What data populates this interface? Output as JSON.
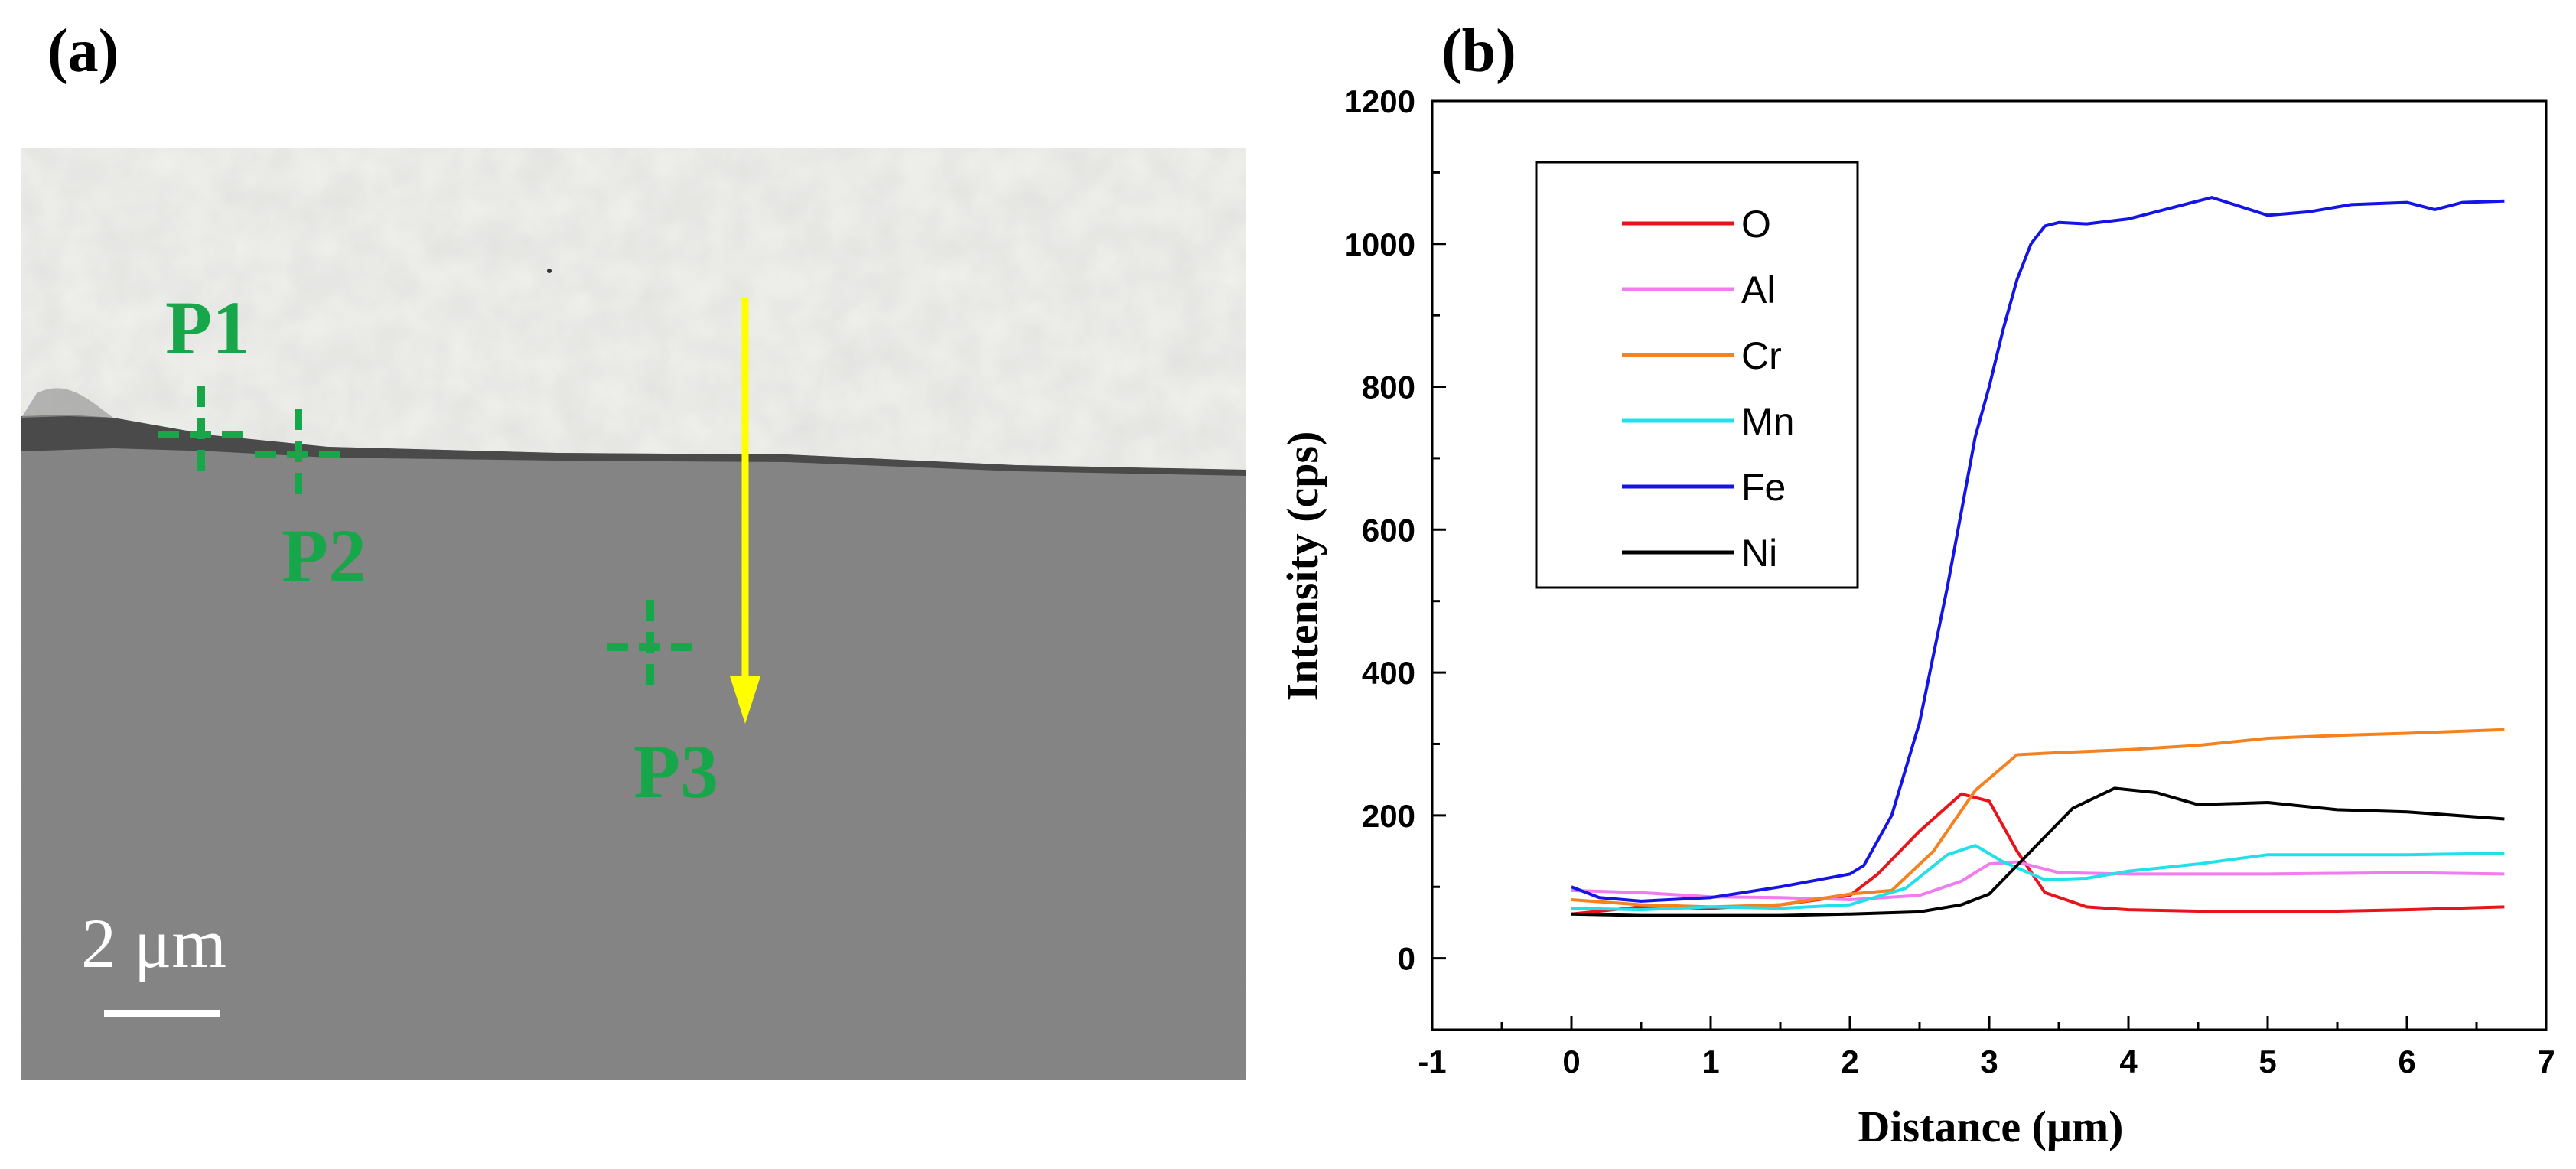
{
  "panels": {
    "a": "(a)",
    "b": "(b)"
  },
  "sem_image": {
    "points": [
      {
        "label": "P1"
      },
      {
        "label": "P2"
      },
      {
        "label": "P3"
      }
    ],
    "scale_bar": "2 μm",
    "marker_color": "#18a64a",
    "arrow_color": "#ffff00"
  },
  "chart_data": {
    "type": "line",
    "xlabel": "Distance (μm)",
    "ylabel": "Intensity  (cps)",
    "xlim": [
      -1,
      7
    ],
    "ylim": [
      -100,
      1200
    ],
    "xticks": [
      -1,
      0,
      1,
      2,
      3,
      4,
      5,
      6,
      7
    ],
    "yticks": [
      0,
      200,
      400,
      600,
      800,
      1000,
      1200
    ],
    "legend_position": "top-left",
    "series": [
      {
        "name": "O",
        "color": "#e8141c",
        "x": [
          0,
          0.5,
          1,
          1.5,
          2,
          2.2,
          2.5,
          2.8,
          3.0,
          3.2,
          3.4,
          3.7,
          4,
          4.5,
          5,
          5.5,
          6,
          6.7
        ],
        "y": [
          62,
          72,
          70,
          75,
          88,
          118,
          178,
          230,
          220,
          150,
          92,
          72,
          68,
          66,
          66,
          66,
          68,
          72
        ]
      },
      {
        "name": "Al",
        "color": "#f07cf0",
        "x": [
          0,
          0.5,
          1,
          1.5,
          2,
          2.5,
          2.8,
          3.0,
          3.2,
          3.5,
          4,
          5,
          6,
          6.7
        ],
        "y": [
          95,
          92,
          86,
          85,
          82,
          88,
          108,
          132,
          135,
          120,
          118,
          118,
          120,
          118
        ]
      },
      {
        "name": "Cr",
        "color": "#f5821f",
        "x": [
          0,
          0.5,
          1,
          1.5,
          2,
          2.3,
          2.6,
          2.9,
          3.2,
          3.5,
          4,
          4.5,
          5,
          5.5,
          6,
          6.7
        ],
        "y": [
          82,
          75,
          72,
          75,
          90,
          95,
          150,
          235,
          285,
          288,
          292,
          298,
          308,
          312,
          315,
          320
        ]
      },
      {
        "name": "Mn",
        "color": "#22e0ea",
        "x": [
          0,
          0.5,
          1,
          1.5,
          2,
          2.4,
          2.7,
          2.9,
          3.1,
          3.4,
          3.7,
          4,
          4.5,
          5,
          5.5,
          6,
          6.7
        ],
        "y": [
          70,
          68,
          72,
          70,
          75,
          98,
          145,
          158,
          135,
          110,
          112,
          122,
          132,
          145,
          145,
          145,
          147
        ]
      },
      {
        "name": "Fe",
        "color": "#1414e6",
        "x": [
          0,
          0.2,
          0.5,
          1,
          1.5,
          2,
          2.1,
          2.3,
          2.5,
          2.7,
          2.9,
          3.0,
          3.1,
          3.2,
          3.3,
          3.4,
          3.5,
          3.7,
          4,
          4.3,
          4.6,
          5,
          5.3,
          5.6,
          6,
          6.2,
          6.4,
          6.7
        ],
        "y": [
          100,
          85,
          80,
          85,
          100,
          118,
          130,
          200,
          330,
          520,
          730,
          800,
          880,
          950,
          1000,
          1025,
          1030,
          1028,
          1035,
          1050,
          1065,
          1040,
          1045,
          1055,
          1058,
          1048,
          1058,
          1060
        ]
      },
      {
        "name": "Ni",
        "color": "#000000",
        "x": [
          0,
          0.5,
          1,
          1.5,
          2,
          2.5,
          2.8,
          3.0,
          3.3,
          3.6,
          3.9,
          4.2,
          4.5,
          5,
          5.5,
          6,
          6.7
        ],
        "y": [
          62,
          60,
          60,
          60,
          62,
          65,
          75,
          90,
          150,
          210,
          238,
          232,
          215,
          218,
          208,
          205,
          195
        ]
      }
    ]
  }
}
